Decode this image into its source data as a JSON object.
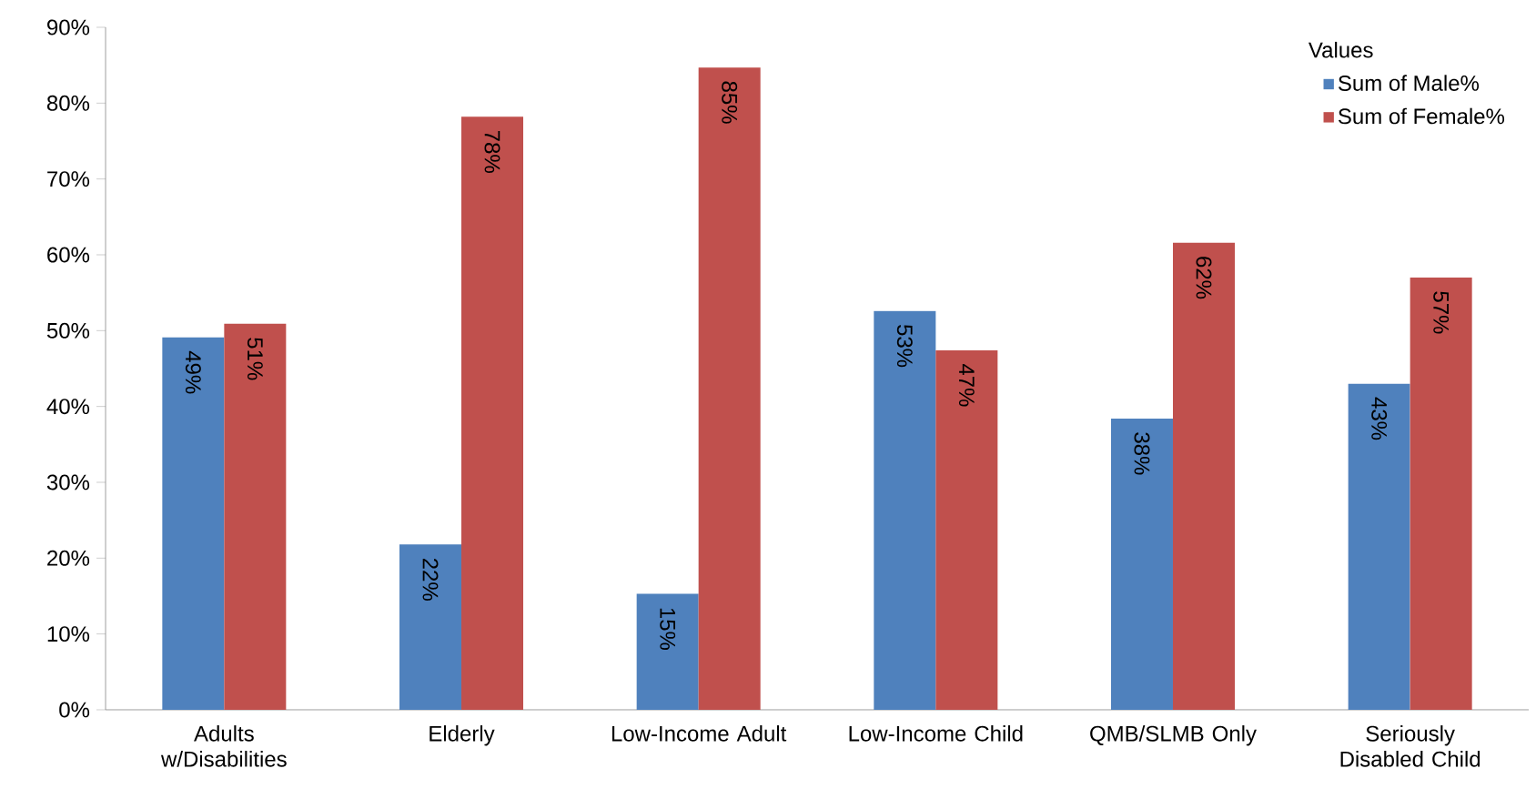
{
  "chart_data": {
    "type": "bar",
    "legend_title": "Values",
    "categories": [
      "Adults w/Disabilities",
      "Elderly",
      "Low-Income Adult",
      "Low-Income Child",
      "QMB/SLMB Only",
      "Seriously Disabled Child"
    ],
    "series": [
      {
        "name": "Sum of Male%",
        "color": "#4f81bd",
        "values": [
          49.1,
          21.8,
          15.3,
          52.6,
          38.4,
          43.0
        ],
        "value_labels": [
          "49%",
          "22%",
          "15%",
          "53%",
          "38%",
          "43%"
        ]
      },
      {
        "name": "Sum of Female%",
        "color": "#c0504d",
        "values": [
          50.9,
          78.2,
          84.7,
          47.4,
          61.6,
          57.0
        ],
        "value_labels": [
          "51%",
          "78%",
          "85%",
          "47%",
          "62%",
          "57%"
        ]
      }
    ],
    "ylim": [
      0,
      90
    ],
    "yticks": [
      {
        "value": 0,
        "label": "0%"
      },
      {
        "value": 10,
        "label": "10%"
      },
      {
        "value": 20,
        "label": "20%"
      },
      {
        "value": 30,
        "label": "30%"
      },
      {
        "value": 40,
        "label": "40%"
      },
      {
        "value": 50,
        "label": "50%"
      },
      {
        "value": 60,
        "label": "60%"
      },
      {
        "value": 70,
        "label": "70%"
      },
      {
        "value": 80,
        "label": "80%"
      },
      {
        "value": 90,
        "label": "90%"
      }
    ],
    "legend": "top right"
  }
}
